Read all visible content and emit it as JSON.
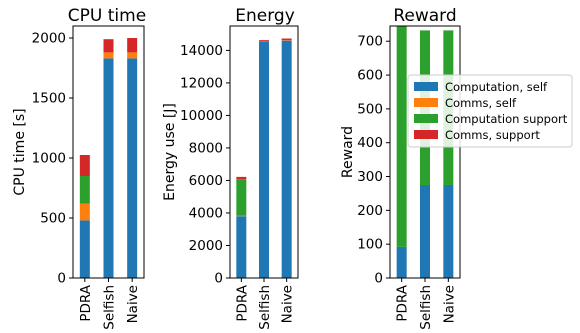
{
  "chart_data": [
    {
      "type": "bar",
      "stacked": true,
      "title": "CPU time",
      "ylabel": "CPU time [s]",
      "xlabel": "",
      "categories": [
        "PDRA",
        "Selfish",
        "Naive"
      ],
      "ylim": [
        0,
        2100
      ],
      "yticks": [
        0,
        500,
        1000,
        1500,
        2000
      ],
      "series": [
        {
          "name": "Computation, self",
          "values": [
            480,
            1830,
            1830
          ]
        },
        {
          "name": "Comms, self",
          "values": [
            140,
            50,
            50
          ]
        },
        {
          "name": "Computation support",
          "values": [
            230,
            0,
            0
          ]
        },
        {
          "name": "Comms, support",
          "values": [
            175,
            110,
            120
          ]
        }
      ]
    },
    {
      "type": "bar",
      "stacked": true,
      "title": "Energy",
      "ylabel": "Energy use [J]",
      "xlabel": "",
      "categories": [
        "PDRA",
        "Selfish",
        "Naive"
      ],
      "ylim": [
        0,
        15500
      ],
      "yticks": [
        0,
        2000,
        4000,
        6000,
        8000,
        10000,
        12000,
        14000
      ],
      "series": [
        {
          "name": "Computation, self",
          "values": [
            3800,
            14550,
            14600
          ]
        },
        {
          "name": "Comms, self",
          "values": [
            30,
            20,
            30
          ]
        },
        {
          "name": "Computation support",
          "values": [
            2250,
            0,
            0
          ]
        },
        {
          "name": "Comms, support",
          "values": [
            140,
            60,
            100
          ]
        }
      ]
    },
    {
      "type": "bar",
      "stacked": true,
      "title": "Reward",
      "ylabel": "Reward",
      "xlabel": "",
      "categories": [
        "PDRA",
        "Selfish",
        "Naive"
      ],
      "ylim": [
        0,
        745
      ],
      "yticks": [
        0,
        100,
        200,
        300,
        400,
        500,
        600,
        700
      ],
      "series": [
        {
          "name": "Computation, self",
          "values": [
            92,
            275,
            275
          ]
        },
        {
          "name": "Comms, self",
          "values": [
            0,
            0,
            0
          ]
        },
        {
          "name": "Computation support",
          "values": [
            653,
            457,
            457
          ]
        },
        {
          "name": "Comms, support",
          "values": [
            0,
            0,
            0
          ]
        }
      ]
    }
  ],
  "legend": {
    "placement": "center-right of Reward panel",
    "entries": [
      {
        "label": "Computation, self",
        "color": "#1f77b4"
      },
      {
        "label": "Comms, self",
        "color": "#ff7f0e"
      },
      {
        "label": "Computation support",
        "color": "#2ca02c"
      },
      {
        "label": "Comms, support",
        "color": "#d62728"
      }
    ]
  }
}
